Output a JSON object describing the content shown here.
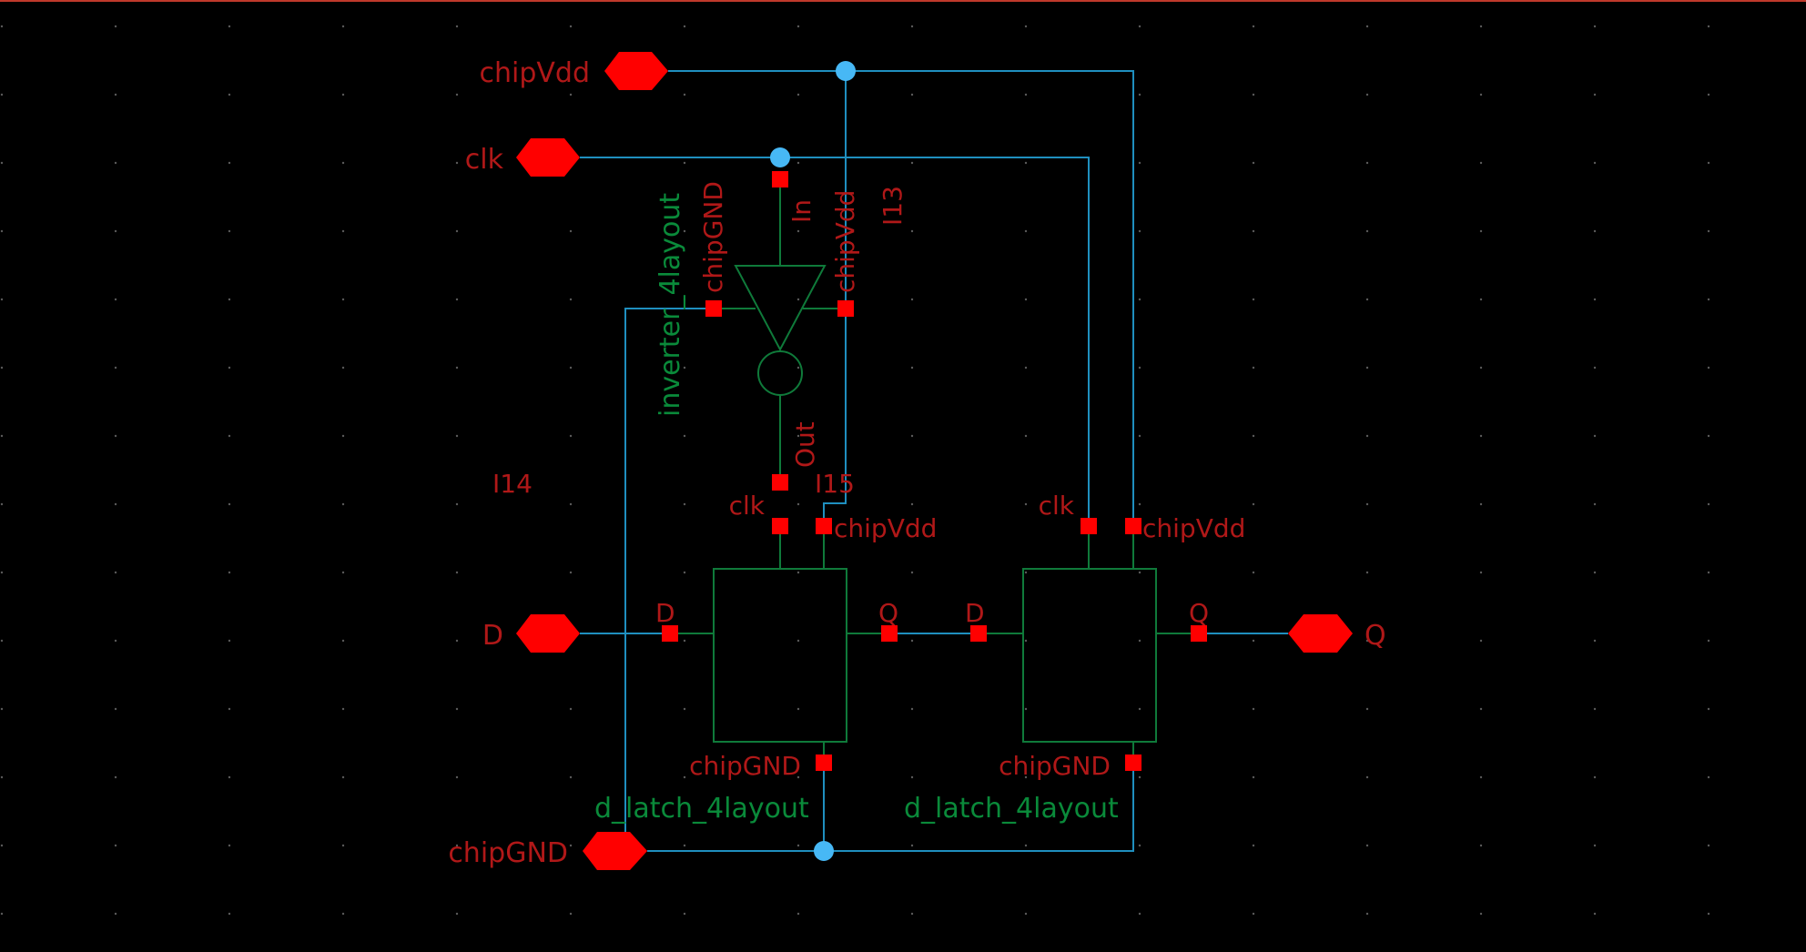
{
  "colors": {
    "background": "#000000",
    "wire": "#1f8fbf",
    "symbol": "#0f7a3a",
    "pin": "#ff0000",
    "pin_label": "#b01818",
    "cell_label": "#0a8a3a",
    "junction": "#47b8f5"
  },
  "pins": {
    "chipVdd": "chipVdd",
    "clk": "clk",
    "D": "D",
    "Q": "Q",
    "chipGND": "chipGND"
  },
  "instances": {
    "inverter": {
      "id": "I13",
      "cell": "inverter_4layout",
      "terminals": {
        "in": "In",
        "out": "Out",
        "vdd": "chipVdd",
        "gnd": "chipGND"
      }
    },
    "latch1": {
      "id": "I15",
      "cell": "d_latch_4layout",
      "terminals": {
        "clk": "clk",
        "vdd": "chipVdd",
        "d": "D",
        "q": "Q",
        "gnd": "chipGND"
      }
    },
    "latch2": {
      "id": "I14",
      "cell": "d_latch_4layout",
      "terminals": {
        "clk": "clk",
        "vdd": "chipVdd",
        "d": "D",
        "q": "Q",
        "gnd": "chipGND"
      }
    }
  }
}
